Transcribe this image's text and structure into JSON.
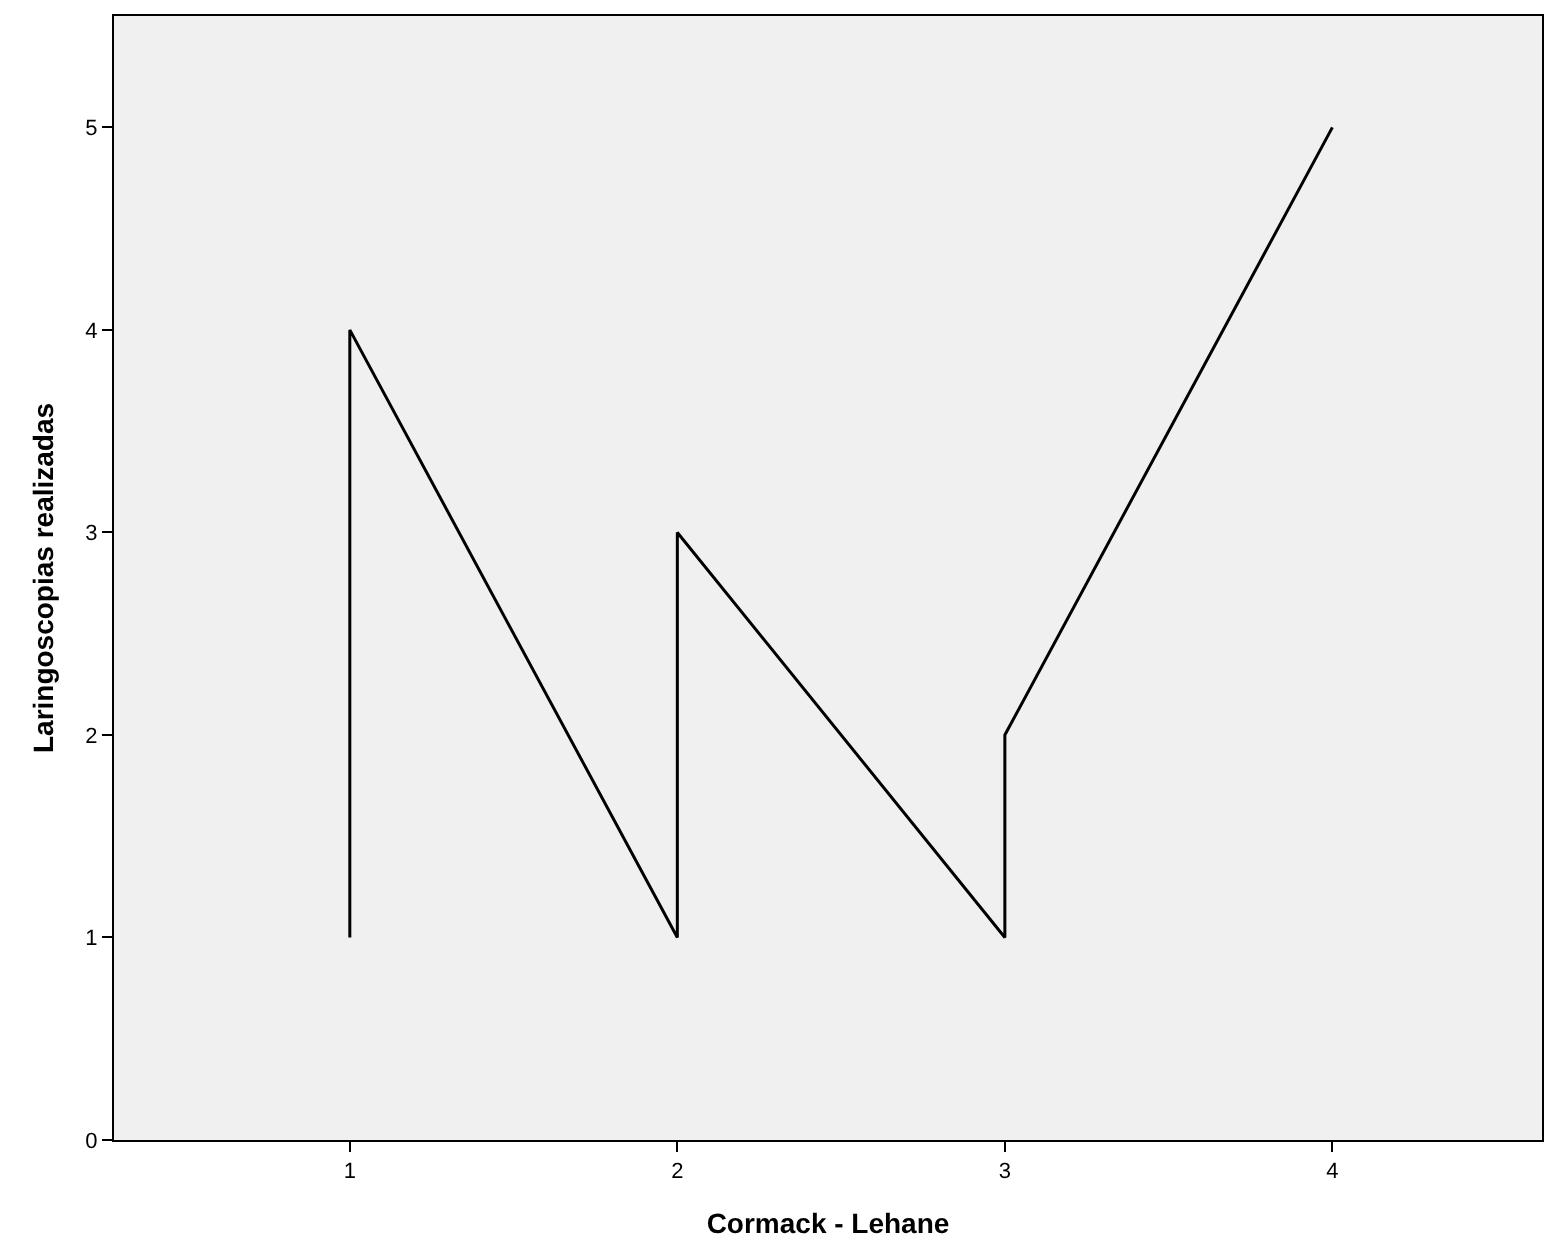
{
  "chart_data": {
    "type": "line",
    "xlabel": "Cormack - Lehane",
    "ylabel": "Laringoscopias realizadas",
    "x": [
      1,
      1,
      2,
      2,
      3,
      3,
      4
    ],
    "series": [
      {
        "color": "#000000",
        "values": [
          1,
          4,
          1,
          3,
          1,
          2,
          5
        ]
      }
    ],
    "xlim": [
      0.28,
      4.64
    ],
    "xticks": [
      1,
      2,
      3,
      4
    ],
    "ylim": [
      0,
      5.55
    ],
    "yticks": [
      0,
      1,
      2,
      3,
      4,
      5
    ],
    "line_style": "solid"
  }
}
